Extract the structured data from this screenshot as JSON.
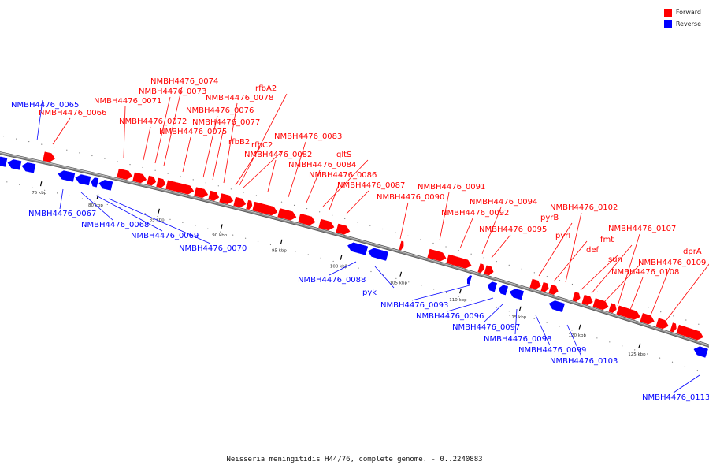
{
  "legend": {
    "forward_label": "Forward",
    "reverse_label": "Reverse",
    "forward_color": "#ff0000",
    "reverse_color": "#0000ff"
  },
  "caption": "Neisseria meningitidis H44/76, complete genome. - 0..2240883",
  "backbone_color": "#888888",
  "ticks": [
    "75 kbp",
    "80 kbp",
    "85 kbp",
    "90 kbp",
    "95 kbp",
    "100 kbp",
    "105 kbp",
    "110 kbp",
    "115 kbp",
    "120 kbp",
    "125 kbp"
  ],
  "forward_genes": [
    "NMBH4476_0066",
    "NMBH4476_0071",
    "NMBH4476_0072",
    "NMBH4476_0073",
    "NMBH4476_0074",
    "NMBH4476_0075",
    "NMBH4476_0076",
    "NMBH4476_0077",
    "NMBH4476_0078",
    "rfbA2",
    "rfbB2",
    "rfbC2",
    "NMBH4476_0082",
    "NMBH4476_0083",
    "NMBH4476_0084",
    "gltS",
    "NMBH4476_0086",
    "NMBH4476_0087",
    "NMBH4476_0090",
    "NMBH4476_0091",
    "NMBH4476_0092",
    "NMBH4476_0094",
    "NMBH4476_0095",
    "pyrB",
    "pyrI",
    "NMBH4476_0102",
    "def",
    "fmt",
    "sun",
    "NMBH4476_0107",
    "NMBH4476_0108",
    "NMBH4476_0109",
    "dprA"
  ],
  "reverse_genes": [
    "NMBH4476_0065",
    "NMBH4476_0067",
    "NMBH4476_0068",
    "NMBH4476_0069",
    "NMBH4476_0070",
    "NMBH4476_0088",
    "pyk",
    "NMBH4476_0093",
    "NMBH4476_0096",
    "NMBH4476_0097",
    "NMBH4476_0098",
    "NMBH4476_0099",
    "NMBH4476_0103",
    "NMBH4476_0113"
  ]
}
